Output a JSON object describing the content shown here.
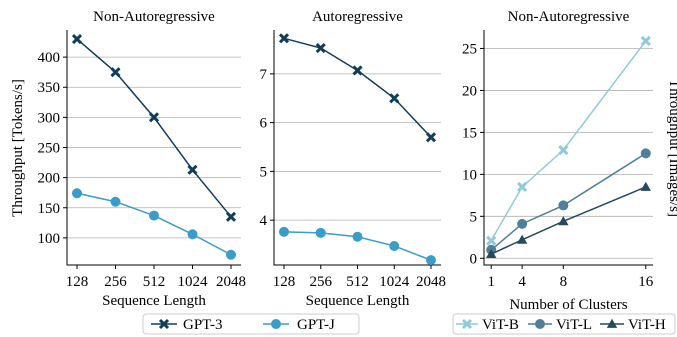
{
  "figure": {
    "left_ylabel": "Throughput [Tokens/s]",
    "right_ylabel": "Throughput [Images/s]",
    "legend_left": [
      {
        "label": "GPT-3",
        "color": "#0f3d5a",
        "marker": "x"
      },
      {
        "label": "GPT-J",
        "color": "#3a9cc8",
        "marker": "circle"
      }
    ],
    "legend_right": [
      {
        "label": "ViT-B",
        "color": "#8fc9dc",
        "marker": "x"
      },
      {
        "label": "ViT-L",
        "color": "#4f7f99",
        "marker": "circle"
      },
      {
        "label": "ViT-H",
        "color": "#27495e",
        "marker": "triangle"
      }
    ]
  },
  "chart_data": [
    {
      "type": "line",
      "title": "Non-Autoregressive",
      "xlabel": "Sequence Length",
      "ylabel": "Throughput [Tokens/s]",
      "x_scale": "categorical",
      "categories": [
        "128",
        "256",
        "512",
        "1024",
        "2048"
      ],
      "ylim": [
        55,
        445
      ],
      "yticks": [
        100,
        150,
        200,
        250,
        300,
        350,
        400
      ],
      "grid": "horizontal",
      "series": [
        {
          "name": "GPT-3",
          "color": "#0f3d5a",
          "marker": "x",
          "values": [
            430,
            375,
            300,
            213,
            135
          ]
        },
        {
          "name": "GPT-J",
          "color": "#3a9cc8",
          "marker": "circle",
          "values": [
            174,
            160,
            137,
            106,
            72
          ]
        }
      ]
    },
    {
      "type": "line",
      "title": "Autoregressive",
      "xlabel": "Sequence Length",
      "ylabel": "",
      "x_scale": "categorical",
      "categories": [
        "128",
        "256",
        "512",
        "1024",
        "2048"
      ],
      "ylim": [
        3.08,
        7.9
      ],
      "yticks": [
        4,
        5,
        6,
        7
      ],
      "grid": "horizontal",
      "series": [
        {
          "name": "GPT-3",
          "color": "#0f3d5a",
          "marker": "x",
          "values": [
            7.73,
            7.53,
            7.07,
            6.5,
            5.7
          ]
        },
        {
          "name": "GPT-J",
          "color": "#3a9cc8",
          "marker": "circle",
          "values": [
            3.76,
            3.74,
            3.66,
            3.47,
            3.18
          ]
        }
      ]
    },
    {
      "type": "line",
      "title": "Non-Autoregressive",
      "xlabel": "Number of Clusters",
      "ylabel": "Throughput [Images/s]",
      "x_scale": "linear",
      "x": [
        1,
        4,
        8,
        16
      ],
      "xticks": [
        1,
        4,
        8,
        16
      ],
      "xlim": [
        0.3,
        16.7
      ],
      "ylim": [
        -0.8,
        27.2
      ],
      "yticks": [
        0,
        5,
        10,
        15,
        20,
        25
      ],
      "grid": "horizontal",
      "series": [
        {
          "name": "ViT-B",
          "color": "#8fc9dc",
          "marker": "x",
          "values": [
            2.1,
            8.5,
            12.9,
            25.9
          ]
        },
        {
          "name": "ViT-L",
          "color": "#4f7f99",
          "marker": "circle",
          "values": [
            1.0,
            4.1,
            6.3,
            12.5
          ]
        },
        {
          "name": "ViT-H",
          "color": "#27495e",
          "marker": "triangle",
          "values": [
            0.5,
            2.2,
            4.4,
            8.5
          ]
        }
      ]
    }
  ]
}
